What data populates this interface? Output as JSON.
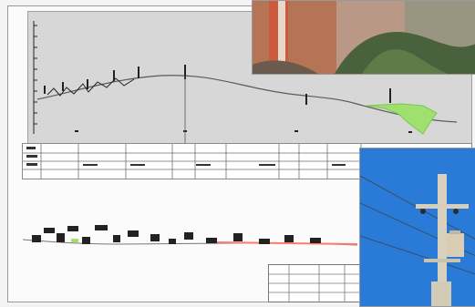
{
  "figure": {
    "kind": "engineering profile and plan sheet with inset photos",
    "photos": [
      {
        "name": "brick-wall-photo"
      },
      {
        "name": "utility-pole-photo"
      }
    ]
  },
  "colors": {
    "profile_fill": "#d7d7d7",
    "ground_line": "#5d5d5d",
    "green_cut": "#9fe06f",
    "plan_red": "#ff7a6b",
    "sheet_border": "#9a9a9a"
  }
}
